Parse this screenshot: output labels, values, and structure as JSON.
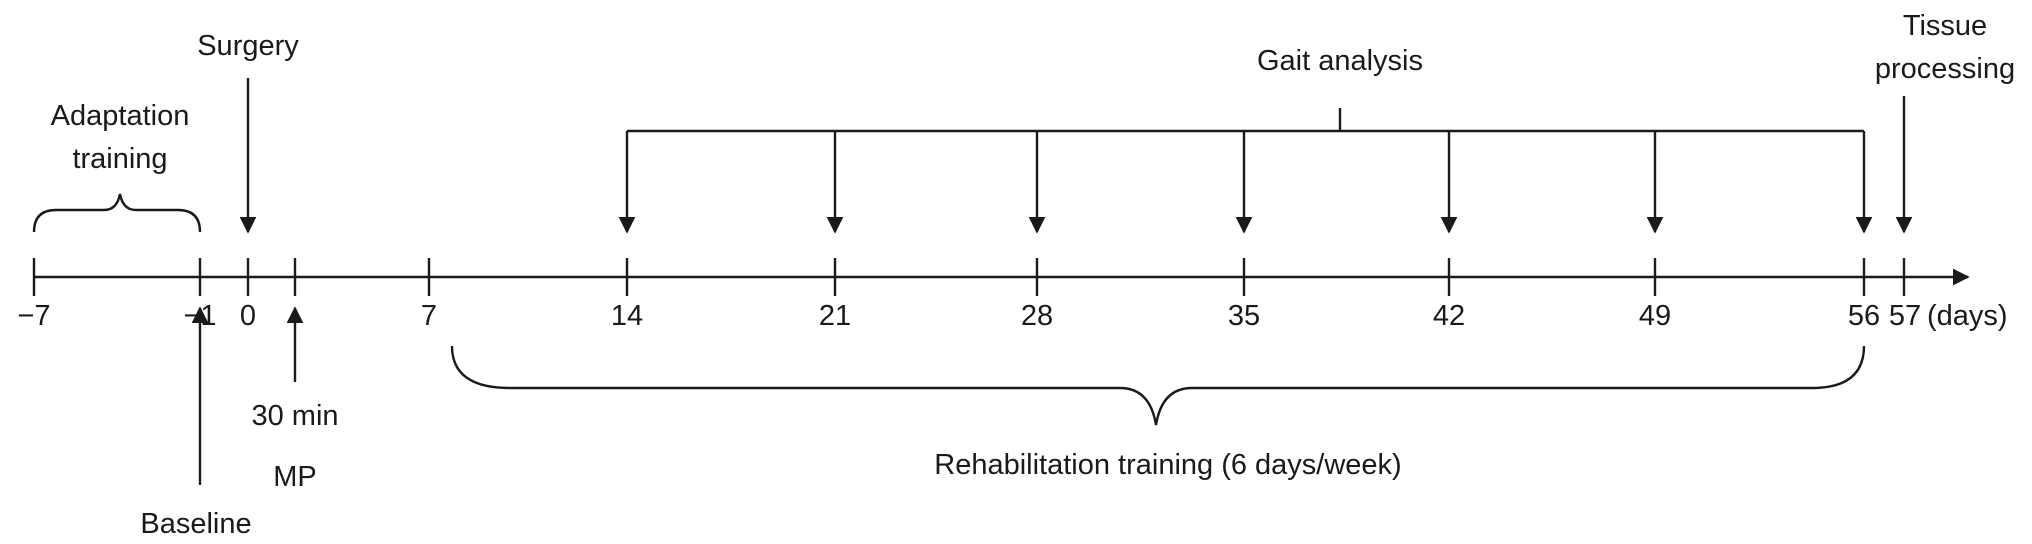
{
  "timeline": {
    "unit_label": "(days)",
    "ticks": [
      "−7",
      "−1",
      "0",
      "",
      "7",
      "14",
      "21",
      "28",
      "35",
      "42",
      "49",
      "56",
      "57"
    ]
  },
  "labels": {
    "adaptation_line1": "Adaptation",
    "adaptation_line2": "training",
    "surgery": "Surgery",
    "gait_analysis": "Gait analysis",
    "tissue_line1": "Tissue",
    "tissue_line2": "processing",
    "baseline": "Baseline",
    "mp_time": "30 min",
    "mp": "MP",
    "rehabilitation": "Rehabilitation training (6 days/week)"
  },
  "colors": {
    "ink": "#1a1a1a",
    "background": "#ffffff"
  }
}
